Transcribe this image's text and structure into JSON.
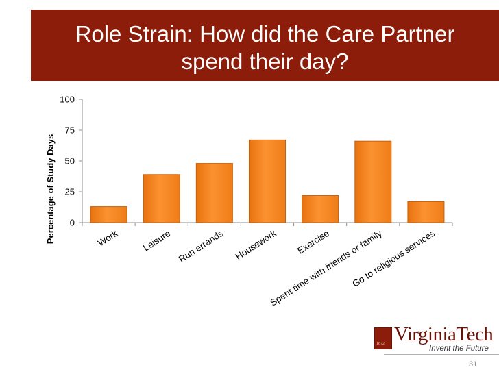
{
  "slide": {
    "title_line1": "Role Strain: How did the Care Partner",
    "title_line2": "spend their day?",
    "page_number": "31",
    "accent_color": "#8b1d0a"
  },
  "logo": {
    "name": "VirginiaTech",
    "tagline": "Invent the Future",
    "shield_text": "1872"
  },
  "chart_data": {
    "type": "bar",
    "title": "",
    "xlabel": "",
    "ylabel": "Percentage of Study Days",
    "ylim": [
      0,
      100
    ],
    "yticks": [
      0,
      25,
      50,
      75,
      100
    ],
    "grid": false,
    "categories": [
      "Work",
      "Leisure",
      "Run errands",
      "Housework",
      "Exercise",
      "Spent time with friends or family",
      "Go to religious services"
    ],
    "values": [
      13,
      39,
      48,
      67,
      22,
      66,
      17
    ],
    "bar_color": "#f7861d",
    "bar_edge_color": "#c85f0a"
  }
}
